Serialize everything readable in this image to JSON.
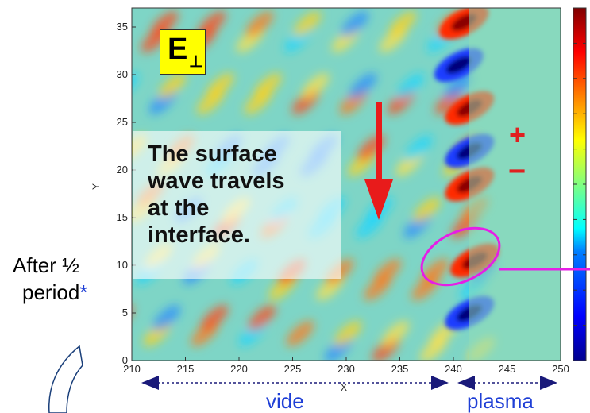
{
  "chart_data": {
    "type": "heatmap",
    "title": "",
    "xlabel": "X",
    "ylabel": "Y",
    "xlim": [
      210,
      250
    ],
    "ylim": [
      0,
      37
    ],
    "x_ticks": [
      210,
      215,
      220,
      225,
      230,
      235,
      240,
      245,
      250
    ],
    "y_ticks": [
      0,
      5,
      10,
      15,
      20,
      25,
      30,
      35
    ],
    "colormap": [
      "#00008f",
      "#0000ff",
      "#0080ff",
      "#00ffff",
      "#80ff80",
      "#ffff00",
      "#ff8000",
      "#ff0000",
      "#800000"
    ],
    "interface_x": 241,
    "hotspots": [
      {
        "x": 241.0,
        "y": 35.5,
        "sign": "+"
      },
      {
        "x": 240.5,
        "y": 31.0,
        "sign": "-"
      },
      {
        "x": 241.5,
        "y": 26.5,
        "sign": "+"
      },
      {
        "x": 241.5,
        "y": 22.0,
        "sign": "-"
      },
      {
        "x": 241.5,
        "y": 18.5,
        "sign": "+"
      },
      {
        "x": 242.0,
        "y": 10.5,
        "sign": "+"
      },
      {
        "x": 241.5,
        "y": 5.0,
        "sign": "-"
      }
    ]
  },
  "annotations": {
    "badge_letter": "E",
    "badge_subscript": "⊥",
    "callout": [
      "The surface",
      "wave travels",
      "at the",
      "interface."
    ],
    "side_label_line1": "After ½",
    "side_label_line2": "period",
    "side_label_star": "*",
    "plus": "+",
    "minus": "−",
    "region_vacuum": "vide",
    "region_plasma": "plasma"
  },
  "colors": {
    "arrow": "#e81b1b",
    "ellipse": "#e61ee6",
    "range_arrows": "#1a1a7a",
    "region_text": "#1f3fd6"
  }
}
